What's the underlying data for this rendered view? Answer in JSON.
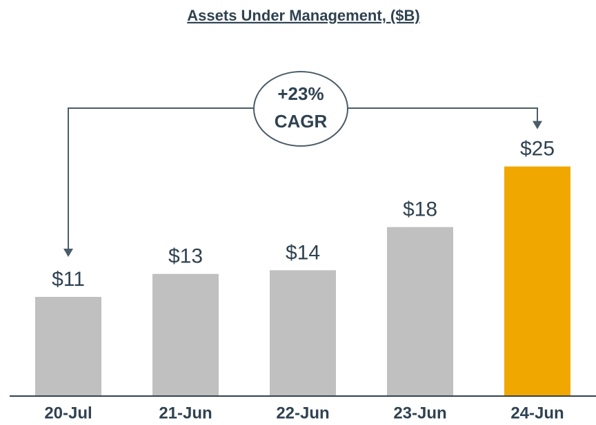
{
  "chart_data": {
    "type": "bar",
    "title": "Assets Under Management, ($B)",
    "categories": [
      "20-Jul",
      "21-Jun",
      "22-Jun",
      "23-Jun",
      "24-Jun"
    ],
    "values": [
      10.8,
      13.3,
      13.7,
      18.4,
      25
    ],
    "value_labels": [
      "$11",
      "$13",
      "$14",
      "$18",
      "$25"
    ],
    "colors": [
      "#c0c0c0",
      "#c0c0c0",
      "#c0c0c0",
      "#c0c0c0",
      "#f0a800"
    ],
    "ylim": [
      0,
      30
    ],
    "annotation": [
      "+23%",
      "CAGR"
    ]
  }
}
